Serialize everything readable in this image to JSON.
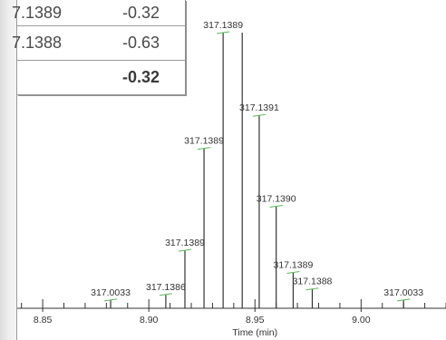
{
  "table": {
    "rows": [
      {
        "mz": "7.1389",
        "ppm": "-0.32"
      },
      {
        "mz": "7.1388",
        "ppm": "-0.63"
      }
    ],
    "summary": {
      "mz": "",
      "ppm": "-0.32"
    }
  },
  "chart_data": {
    "type": "bar",
    "title": "",
    "xlabel": "Time (min)",
    "ylabel": "",
    "xlim": [
      8.838,
      9.04
    ],
    "ylim": [
      0,
      100
    ],
    "x_ticks": [
      8.85,
      8.9,
      8.95,
      9.0
    ],
    "x_tick_labels": [
      "8.85",
      "8.90",
      "8.95",
      "9.00"
    ],
    "peaks": [
      {
        "x": 8.882,
        "y": 3,
        "label": "317.0033"
      },
      {
        "x": 8.908,
        "y": 5,
        "label": "317.1386"
      },
      {
        "x": 8.917,
        "y": 21,
        "label": "317.1389"
      },
      {
        "x": 8.926,
        "y": 58,
        "label": "317.1389"
      },
      {
        "x": 8.935,
        "y": 100,
        "label": "317.1389"
      },
      {
        "x": 8.944,
        "y": 100,
        "label": ""
      },
      {
        "x": 8.952,
        "y": 70,
        "label": "317.1391"
      },
      {
        "x": 8.96,
        "y": 37,
        "label": "317.1390"
      },
      {
        "x": 8.968,
        "y": 13,
        "label": "317.1389"
      },
      {
        "x": 8.977,
        "y": 7,
        "label": "317.1388"
      },
      {
        "x": 9.02,
        "y": 3,
        "label": "317.0033"
      }
    ]
  }
}
